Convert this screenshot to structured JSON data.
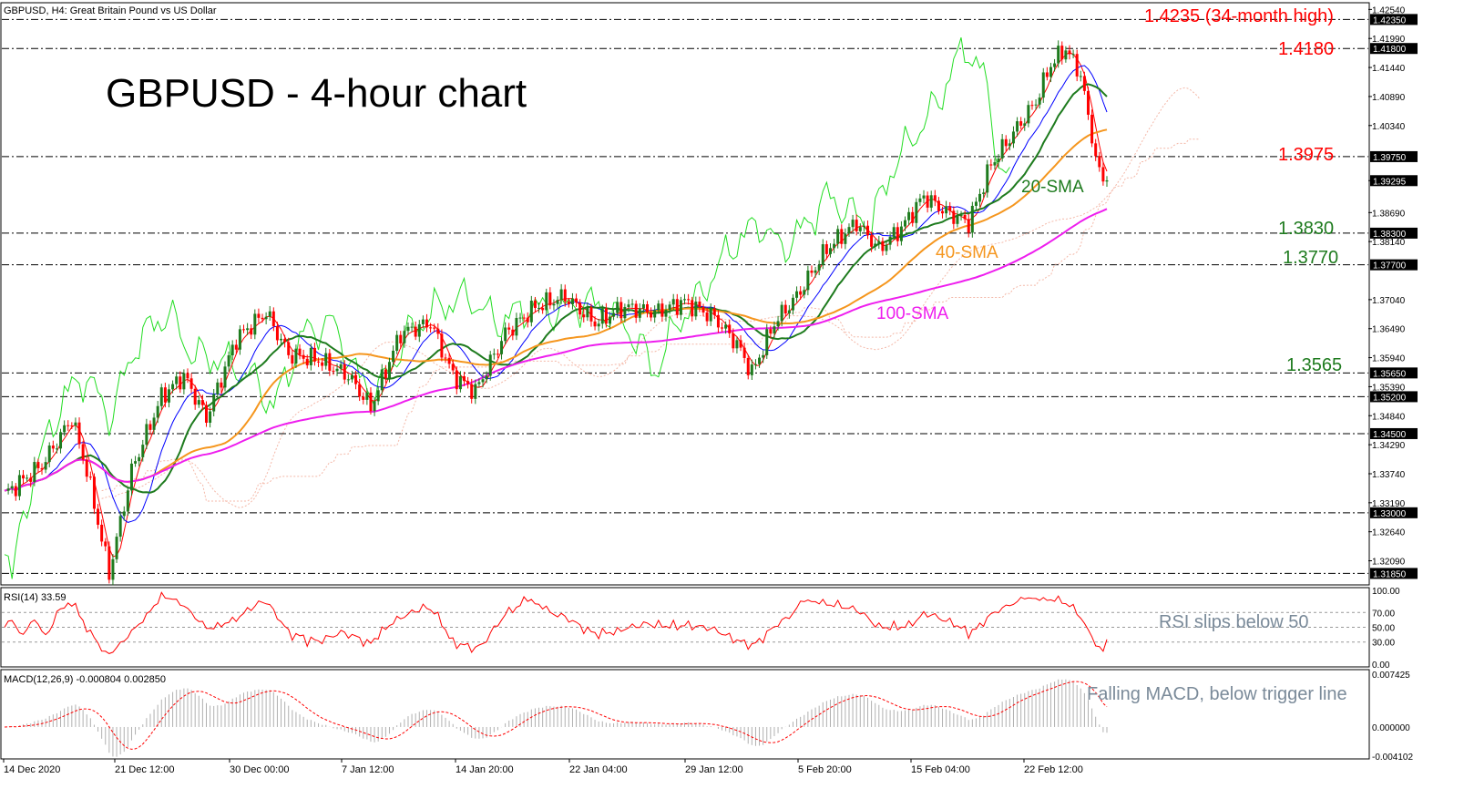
{
  "header": {
    "symbol_info": "GBPUSD, H4:  Great Britain Pound vs US Dollar",
    "title": "GBPUSD - 4-hour chart",
    "rsi_label": "RSI(14) 33.59",
    "macd_label": "MACD(12,26,9) -0.000804 0.002850"
  },
  "annotations": {
    "level_1_4235": "1.4235 (34-month high)",
    "level_1_4180": "1.4180",
    "level_1_3975": "1.3975",
    "level_1_3830": "1.3830",
    "level_1_3770": "1.3770",
    "level_1_3565": "1.3565",
    "sma20": "20-SMA",
    "sma40": "40-SMA",
    "sma100": "100-SMA",
    "rsi_note": "RSI slips below 50",
    "macd_note": "Falling MACD, below trigger line"
  },
  "colors": {
    "sma20": "#1e7b1e",
    "sma40": "#f5961e",
    "sma100": "#ee1eee",
    "tenkan": "#ff0000",
    "kijun": "#0000ff",
    "chikou": "#22dd22",
    "cloud": "#f4b8a8",
    "rsi": "#ff0000",
    "macd_signal": "#ff0000",
    "macd_hist": "#b0b0b0",
    "level_red": "#ff0000",
    "level_green": "#1e7b1e"
  },
  "chart_data": {
    "type": "line",
    "title": "GBPUSD - 4-hour chart",
    "symbol": "GBPUSD",
    "timeframe": "H4",
    "xlabel": "",
    "ylabel": "",
    "x_ticks": [
      "14 Dec 2020",
      "21 Dec 12:00",
      "30 Dec 00:00",
      "7 Jan 12:00",
      "14 Jan 20:00",
      "22 Jan 04:00",
      "29 Jan 12:00",
      "5 Feb 20:00",
      "15 Feb 04:00",
      "22 Feb 12:00"
    ],
    "y_ticks": [
      "1.42540",
      "1.41990",
      "1.41440",
      "1.40890",
      "1.40340",
      "1.39295",
      "1.38690",
      "1.38140",
      "1.37040",
      "1.36490",
      "1.35940",
      "1.35390",
      "1.34840",
      "1.34290",
      "1.33740",
      "1.33190",
      "1.32640",
      "1.32090"
    ],
    "ylim": [
      1.3165,
      1.4265
    ],
    "horizontal_levels": [
      {
        "value": 1.4235,
        "label": "1.42350",
        "color": "red"
      },
      {
        "value": 1.418,
        "label": "1.41800",
        "color": "red"
      },
      {
        "value": 1.3975,
        "label": "1.39750",
        "color": "red"
      },
      {
        "value": 1.383,
        "label": "1.38300",
        "color": "green"
      },
      {
        "value": 1.377,
        "label": "1.37700",
        "color": "green"
      },
      {
        "value": 1.3565,
        "label": "1.35650",
        "color": "green"
      },
      {
        "value": 1.352,
        "label": "1.35200",
        "color": "none"
      },
      {
        "value": 1.345,
        "label": "1.34500",
        "color": "none"
      },
      {
        "value": 1.33,
        "label": "1.33000",
        "color": "none"
      },
      {
        "value": 1.3185,
        "label": "1.31850",
        "color": "none"
      }
    ],
    "current_price": "1.39295",
    "price_anchors": [
      [
        0,
        1.3335
      ],
      [
        10,
        1.339
      ],
      [
        18,
        1.348
      ],
      [
        22,
        1.338
      ],
      [
        28,
        1.3185
      ],
      [
        34,
        1.338
      ],
      [
        42,
        1.352
      ],
      [
        48,
        1.356
      ],
      [
        54,
        1.348
      ],
      [
        62,
        1.363
      ],
      [
        70,
        1.368
      ],
      [
        76,
        1.36
      ],
      [
        84,
        1.359
      ],
      [
        92,
        1.356
      ],
      [
        98,
        1.35
      ],
      [
        106,
        1.364
      ],
      [
        114,
        1.366
      ],
      [
        120,
        1.356
      ],
      [
        126,
        1.353
      ],
      [
        134,
        1.364
      ],
      [
        142,
        1.369
      ],
      [
        150,
        1.371
      ],
      [
        158,
        1.366
      ],
      [
        166,
        1.369
      ],
      [
        174,
        1.368
      ],
      [
        182,
        1.37
      ],
      [
        190,
        1.367
      ],
      [
        196,
        1.362
      ],
      [
        200,
        1.3565
      ],
      [
        206,
        1.366
      ],
      [
        212,
        1.371
      ],
      [
        220,
        1.38
      ],
      [
        228,
        1.385
      ],
      [
        234,
        1.38
      ],
      [
        240,
        1.384
      ],
      [
        246,
        1.39
      ],
      [
        252,
        1.387
      ],
      [
        258,
        1.385
      ],
      [
        264,
        1.396
      ],
      [
        270,
        1.402
      ],
      [
        276,
        1.408
      ],
      [
        280,
        1.415
      ],
      [
        284,
        1.418
      ],
      [
        288,
        1.413
      ],
      [
        290,
        1.405
      ],
      [
        293,
        1.394
      ],
      [
        295,
        1.393
      ]
    ],
    "indicators": {
      "rsi": {
        "period": 14,
        "value": 33.59,
        "levels": [
          70,
          50,
          30
        ],
        "ylim": [
          0,
          100
        ],
        "y_ticks": [
          "100.00",
          "70.00",
          "50.00",
          "30.00",
          "0.00"
        ]
      },
      "macd": {
        "fast": 12,
        "slow": 26,
        "signal": 9,
        "main": -0.000804,
        "signal_value": 0.00285,
        "ylim": [
          -0.004102,
          0.007425
        ],
        "y_ticks": [
          "0.007425",
          "0.000000",
          "-0.004102"
        ]
      }
    }
  }
}
